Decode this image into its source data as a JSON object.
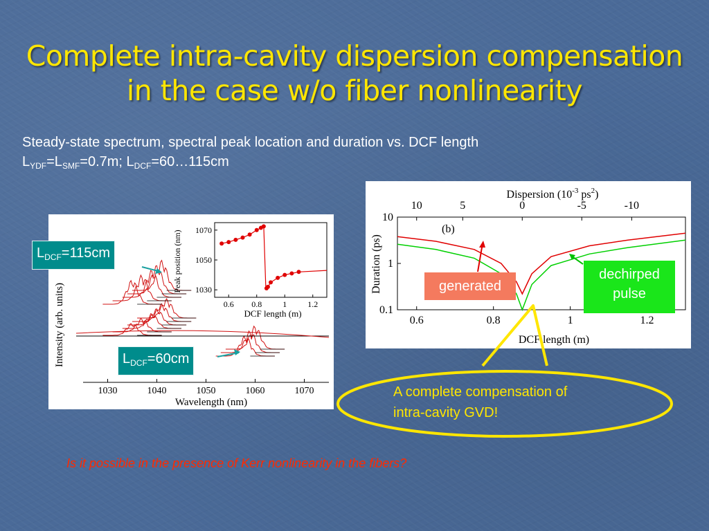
{
  "slide": {
    "title_line1": "Complete intra-cavity dispersion compensation",
    "title_line2": "in the case w/o fiber nonlinearity",
    "subtitle_line1": "Steady-state spectrum, spectral peak location and duration vs. DCF length",
    "subtitle_line2": {
      "L1": "L",
      "sub1": "YDF",
      "eq1": "=L",
      "sub2": "SMF",
      "eq2": "=0.7m; L",
      "sub3": "DCF",
      "eq3": "=60…115cm"
    },
    "label_115": {
      "L": "L",
      "sub": "DCF",
      "rest": "=115cm"
    },
    "label_60": {
      "L": "L",
      "sub": "DCF",
      "rest": "=60cm"
    },
    "generated_label": "generated",
    "dechirped_line1": "dechirped",
    "dechirped_line2": "pulse",
    "callout_line1": "A complete compensation of",
    "callout_line2": "intra-cavity GVD!",
    "question": "Is it possible in the presence of Kerr nonlinearity in the fibers?",
    "colors": {
      "title": "#ffe600",
      "teal": "#008c8c",
      "generated": "#f47a5e",
      "dechirped": "#1ae61a",
      "question": "#ff2a00"
    }
  },
  "chart_data": [
    {
      "type": "line",
      "xlabel": "Wavelength (nm)",
      "ylabel": "Intensity (arb. units)",
      "xticks": [
        "1030",
        "1040",
        "1050",
        "1060",
        "1070"
      ],
      "xlim": [
        1025,
        1075
      ]
    },
    {
      "type": "scatter",
      "xlabel": "DCF length (m)",
      "ylabel": "Peak position (nm)",
      "xticks": [
        "0.6",
        "0.8",
        "1",
        "1.2"
      ],
      "yticks": [
        "1070",
        "1050",
        "1030"
      ],
      "xlim": [
        0.5,
        1.3
      ],
      "ylim": [
        1025,
        1075
      ],
      "x": [
        0.55,
        0.6,
        0.65,
        0.7,
        0.75,
        0.8,
        0.83,
        0.85,
        0.87,
        0.88,
        0.9,
        0.95,
        1.0,
        1.05,
        1.1
      ],
      "y": [
        1061,
        1062,
        1063.5,
        1065,
        1067,
        1070,
        1071.5,
        1072.5,
        1031,
        1032,
        1035,
        1038,
        1040,
        1041,
        1042
      ]
    },
    {
      "type": "line",
      "panel_label": "(b)",
      "xlabel": "DCF length (m)",
      "ylabel": "Duration (ps)",
      "top_xlabel": "Dispersion (10^-3 ps^2)",
      "xticks": [
        "0.6",
        "0.8",
        "1",
        "1.2"
      ],
      "top_xticks": [
        "10",
        "5",
        "0",
        "-5",
        "-10"
      ],
      "yticks": [
        "10",
        "1",
        "0.1"
      ],
      "xlim": [
        0.55,
        1.3
      ],
      "ylim": [
        0.1,
        10
      ],
      "yscale": "log",
      "series": [
        {
          "color": "#e00000",
          "x": [
            0.55,
            0.65,
            0.75,
            0.82,
            0.86,
            0.875,
            0.9,
            0.95,
            1.05,
            1.15,
            1.3
          ],
          "y": [
            3.8,
            3.0,
            2.0,
            1.0,
            0.4,
            0.22,
            0.6,
            1.4,
            2.4,
            3.2,
            4.5
          ]
        },
        {
          "color": "#00d000",
          "x": [
            0.55,
            0.65,
            0.75,
            0.82,
            0.86,
            0.875,
            0.9,
            0.95,
            1.05,
            1.15,
            1.3
          ],
          "y": [
            2.6,
            2.0,
            1.3,
            0.6,
            0.22,
            0.1,
            0.35,
            0.9,
            1.6,
            2.2,
            3.2
          ]
        }
      ]
    }
  ]
}
